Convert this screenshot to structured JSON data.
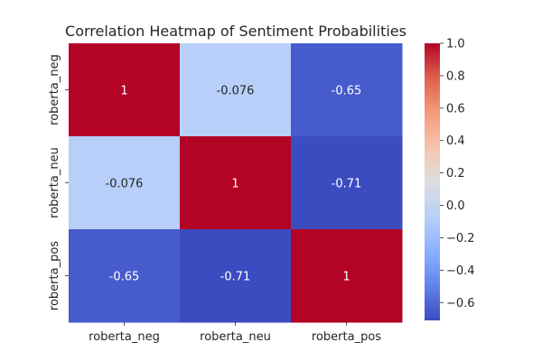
{
  "chart_data": {
    "type": "heatmap",
    "title": "Correlation Heatmap of Sentiment Probabilities",
    "xlabel": "",
    "ylabel": "",
    "x_categories": [
      "roberta_neg",
      "roberta_neu",
      "roberta_pos"
    ],
    "y_categories": [
      "roberta_neg",
      "roberta_neu",
      "roberta_pos"
    ],
    "values": [
      [
        1,
        -0.076,
        -0.65
      ],
      [
        -0.076,
        1,
        -0.71
      ],
      [
        -0.65,
        -0.71,
        1
      ]
    ],
    "value_labels": [
      [
        "1",
        "-0.076",
        "-0.65"
      ],
      [
        "-0.076",
        "1",
        "-0.71"
      ],
      [
        "-0.65",
        "-0.71",
        "1"
      ]
    ],
    "colormap": "coolwarm",
    "colorbar": {
      "range": [
        -0.71,
        1.0
      ],
      "ticks": [
        1.0,
        0.8,
        0.6,
        0.4,
        0.2,
        0.0,
        -0.2,
        -0.4,
        -0.6
      ],
      "tick_labels": [
        "1.0",
        "0.8",
        "0.6",
        "0.4",
        "0.2",
        "0.0",
        "−0.2",
        "−0.4",
        "−0.6"
      ]
    },
    "grid": false,
    "legend": "colorbar-right"
  }
}
